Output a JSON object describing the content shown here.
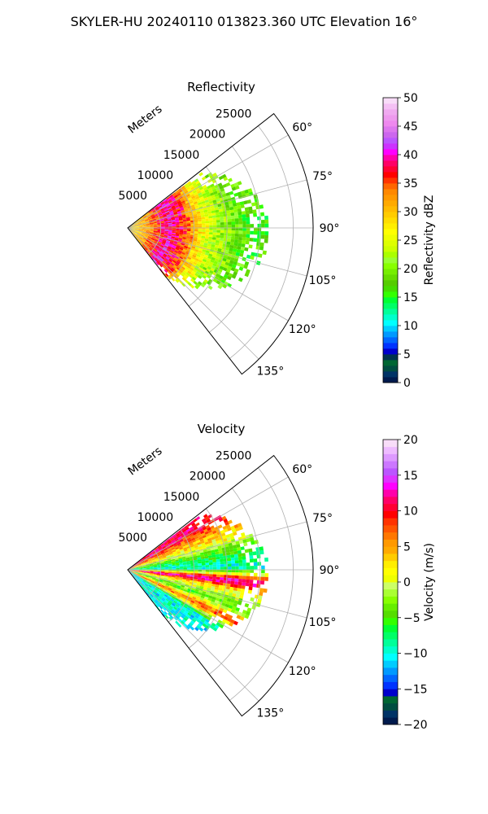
{
  "figure": {
    "suptitle": "SKYLER-HU  20240110  013823.360 UTC Elevation 16°"
  },
  "chart_data": [
    {
      "type": "heatmap",
      "subtype": "polar-sector",
      "title": "Reflectivity",
      "radial_label": "Meters",
      "radial_ticks": [
        "5000",
        "10000",
        "15000",
        "20000",
        "25000"
      ],
      "radial_values": [
        5000,
        10000,
        15000,
        20000,
        25000
      ],
      "r_max": 28000,
      "angle_ticks": [
        "60°",
        "75°",
        "90°",
        "105°",
        "120°",
        "135°"
      ],
      "angle_values": [
        60,
        75,
        90,
        105,
        120,
        135
      ],
      "azimuth_range": [
        52,
        142
      ],
      "colorbar": {
        "label": "Reflectivity dBZ",
        "range": [
          0,
          50
        ],
        "ticks": [
          "0",
          "5",
          "10",
          "15",
          "20",
          "25",
          "30",
          "35",
          "40",
          "45",
          "50"
        ],
        "tick_values": [
          0,
          5,
          10,
          15,
          20,
          25,
          30,
          35,
          40,
          45,
          50
        ],
        "colormap": "NWSRef"
      },
      "grid": true,
      "data_extent_m": 19000,
      "profile": [
        {
          "range_m": 0,
          "value": 28
        },
        {
          "range_m": 3000,
          "value": 32
        },
        {
          "range_m": 6000,
          "value": 40
        },
        {
          "range_m": 8500,
          "value": 36
        },
        {
          "range_m": 10500,
          "value": 28
        },
        {
          "range_m": 13000,
          "value": 22
        },
        {
          "range_m": 16000,
          "value": 19
        },
        {
          "range_m": 19000,
          "value": 17
        }
      ]
    },
    {
      "type": "heatmap",
      "subtype": "polar-sector",
      "title": "Velocity",
      "radial_label": "Meters",
      "radial_ticks": [
        "5000",
        "10000",
        "15000",
        "20000",
        "25000"
      ],
      "radial_values": [
        5000,
        10000,
        15000,
        20000,
        25000
      ],
      "r_max": 28000,
      "angle_ticks": [
        "60°",
        "75°",
        "90°",
        "105°",
        "120°",
        "135°"
      ],
      "angle_values": [
        60,
        75,
        90,
        105,
        120,
        135
      ],
      "azimuth_range": [
        52,
        142
      ],
      "colorbar": {
        "label": "Velocity (m/s)",
        "range": [
          -20,
          20
        ],
        "ticks": [
          "−20",
          "−15",
          "−10",
          "−5",
          "0",
          "5",
          "10",
          "15",
          "20"
        ],
        "tick_values": [
          -20,
          -15,
          -10,
          -5,
          0,
          5,
          10,
          15,
          20
        ],
        "colormap": "NWSVel"
      },
      "grid": true,
      "data_extent_m": 19000,
      "azimuth_profile": [
        {
          "azimuth": 58,
          "value": 11
        },
        {
          "azimuth": 65,
          "value": 6
        },
        {
          "azimuth": 72,
          "value": 1
        },
        {
          "azimuth": 80,
          "value": -6
        },
        {
          "azimuth": 88,
          "value": -10
        },
        {
          "azimuth": 95,
          "value": 14
        },
        {
          "azimuth": 100,
          "value": 2
        },
        {
          "azimuth": 108,
          "value": -5
        },
        {
          "azimuth": 115,
          "value": 8
        },
        {
          "azimuth": 122,
          "value": -10
        }
      ]
    }
  ]
}
